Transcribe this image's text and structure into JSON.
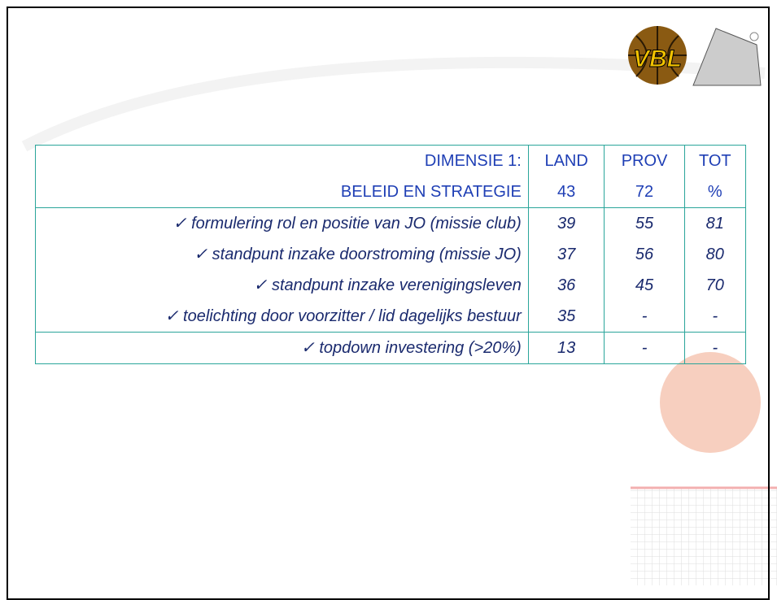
{
  "logo": {
    "text": "VBL"
  },
  "table": {
    "header": [
      [
        "DIMENSIE 1:",
        "LAND",
        "PROV",
        "TOT"
      ],
      [
        "BELEID EN STRATEGIE",
        "43",
        "72",
        "%"
      ]
    ],
    "rows": [
      [
        "✓ formulering rol en positie van JO (missie club)",
        "39",
        "55",
        "81"
      ],
      [
        "✓ standpunt inzake doorstroming (missie JO)",
        "37",
        "56",
        "80"
      ],
      [
        "✓ standpunt inzake verenigingsleven",
        "36",
        "45",
        "70"
      ],
      [
        "✓ toelichting door voorzitter / lid dagelijks bestuur",
        "35",
        "-",
        "-"
      ]
    ],
    "footer": [
      "✓ topdown investering (>20%)",
      "13",
      "-",
      "-"
    ]
  }
}
